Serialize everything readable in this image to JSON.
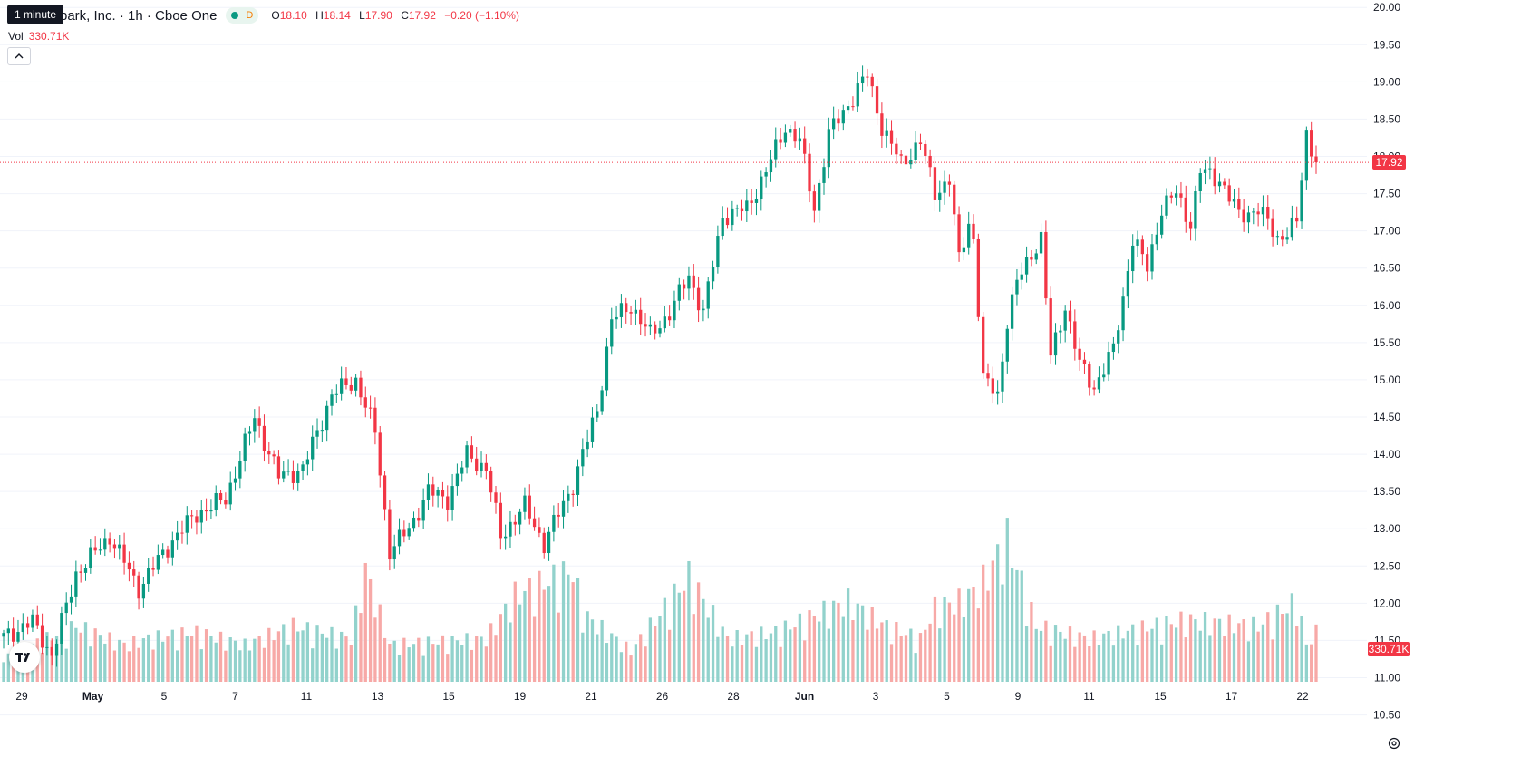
{
  "legend": {
    "symbol": "park, Inc. · 1h · Cboe One",
    "interval_letter": "D",
    "tooltip": "1 minute",
    "open_label": "O",
    "open": "18.10",
    "high_label": "H",
    "high": "18.14",
    "low_label": "L",
    "low": "17.90",
    "close_label": "C",
    "close": "17.92",
    "change": "−0.20 (−1.10%)",
    "volume_label": "Vol",
    "volume": "330.71K"
  },
  "last_price_tag": "17.92",
  "last_volume_tag": "330.71K",
  "colors": {
    "up": "#089981",
    "down": "#f23645",
    "up_vol": "#92d2cc",
    "down_vol": "#f7a9a7",
    "grid": "#f0f3fa"
  },
  "chart_data": {
    "type": "candlestick",
    "y_axis": {
      "min": 10.3,
      "max": 20.1,
      "ticks": [
        10.5,
        11,
        11.5,
        12,
        12.5,
        13,
        13.5,
        14,
        14.5,
        15,
        15.5,
        16,
        16.5,
        17,
        17.5,
        18,
        18.5,
        19,
        19.5,
        20
      ],
      "position": "right"
    },
    "x_axis": {
      "labels": [
        "29",
        "May",
        "5",
        "7",
        "11",
        "13",
        "15",
        "19",
        "21",
        "26",
        "28",
        "Jun",
        "3",
        "5",
        "9",
        "11",
        "15",
        "17",
        "22"
      ]
    },
    "grid": true,
    "last_price": 17.92,
    "anchors": [
      [
        0,
        11.55
      ],
      [
        6,
        11.75
      ],
      [
        10,
        11.3
      ],
      [
        15,
        12.4
      ],
      [
        22,
        12.9
      ],
      [
        28,
        12.2
      ],
      [
        35,
        12.85
      ],
      [
        40,
        13.2
      ],
      [
        46,
        13.4
      ],
      [
        52,
        14.5
      ],
      [
        57,
        13.7
      ],
      [
        62,
        13.8
      ],
      [
        68,
        14.8
      ],
      [
        73,
        15.0
      ],
      [
        77,
        14.3
      ],
      [
        80,
        12.7
      ],
      [
        84,
        13.0
      ],
      [
        88,
        13.5
      ],
      [
        92,
        13.4
      ],
      [
        96,
        14.0
      ],
      [
        100,
        13.8
      ],
      [
        103,
        12.9
      ],
      [
        108,
        13.3
      ],
      [
        112,
        12.8
      ],
      [
        118,
        13.6
      ],
      [
        123,
        14.6
      ],
      [
        126,
        15.8
      ],
      [
        130,
        16.0
      ],
      [
        134,
        15.6
      ],
      [
        138,
        15.9
      ],
      [
        142,
        16.4
      ],
      [
        145,
        15.9
      ],
      [
        149,
        17.2
      ],
      [
        154,
        17.3
      ],
      [
        158,
        17.8
      ],
      [
        162,
        18.4
      ],
      [
        165,
        18.2
      ],
      [
        168,
        17.3
      ],
      [
        171,
        18.3
      ],
      [
        175,
        18.7
      ],
      [
        179,
        19.1
      ],
      [
        182,
        18.4
      ],
      [
        186,
        17.9
      ],
      [
        190,
        18.2
      ],
      [
        193,
        17.5
      ],
      [
        196,
        17.7
      ],
      [
        198,
        16.6
      ],
      [
        200,
        17.1
      ],
      [
        201,
        16.9
      ],
      [
        203,
        15.0
      ],
      [
        206,
        14.8
      ],
      [
        208,
        15.8
      ],
      [
        210,
        16.3
      ],
      [
        213,
        16.7
      ],
      [
        215,
        16.9
      ],
      [
        217,
        15.3
      ],
      [
        220,
        16.0
      ],
      [
        223,
        15.2
      ],
      [
        226,
        14.9
      ],
      [
        230,
        15.4
      ],
      [
        232,
        16.1
      ],
      [
        234,
        16.9
      ],
      [
        237,
        16.5
      ],
      [
        240,
        17.3
      ],
      [
        243,
        17.5
      ],
      [
        246,
        17.1
      ],
      [
        248,
        17.8
      ],
      [
        252,
        17.7
      ],
      [
        256,
        17.2
      ],
      [
        260,
        17.3
      ],
      [
        264,
        16.9
      ],
      [
        268,
        17.1
      ],
      [
        270,
        18.3
      ],
      [
        272,
        17.92
      ]
    ],
    "volume_profile": [
      [
        0,
        40
      ],
      [
        15,
        90
      ],
      [
        25,
        60
      ],
      [
        30,
        70
      ],
      [
        40,
        80
      ],
      [
        50,
        60
      ],
      [
        60,
        90
      ],
      [
        72,
        70
      ],
      [
        75,
        180
      ],
      [
        80,
        60
      ],
      [
        100,
        70
      ],
      [
        106,
        140
      ],
      [
        118,
        180
      ],
      [
        120,
        110
      ],
      [
        130,
        50
      ],
      [
        142,
        170
      ],
      [
        150,
        70
      ],
      [
        160,
        80
      ],
      [
        175,
        130
      ],
      [
        183,
        90
      ],
      [
        190,
        70
      ],
      [
        193,
        120
      ],
      [
        198,
        130
      ],
      [
        202,
        150
      ],
      [
        208,
        230
      ],
      [
        214,
        90
      ],
      [
        225,
        70
      ],
      [
        245,
        100
      ],
      [
        260,
        90
      ],
      [
        268,
        130
      ],
      [
        270,
        60
      ],
      [
        272,
        80
      ]
    ],
    "volume_max": 240
  }
}
